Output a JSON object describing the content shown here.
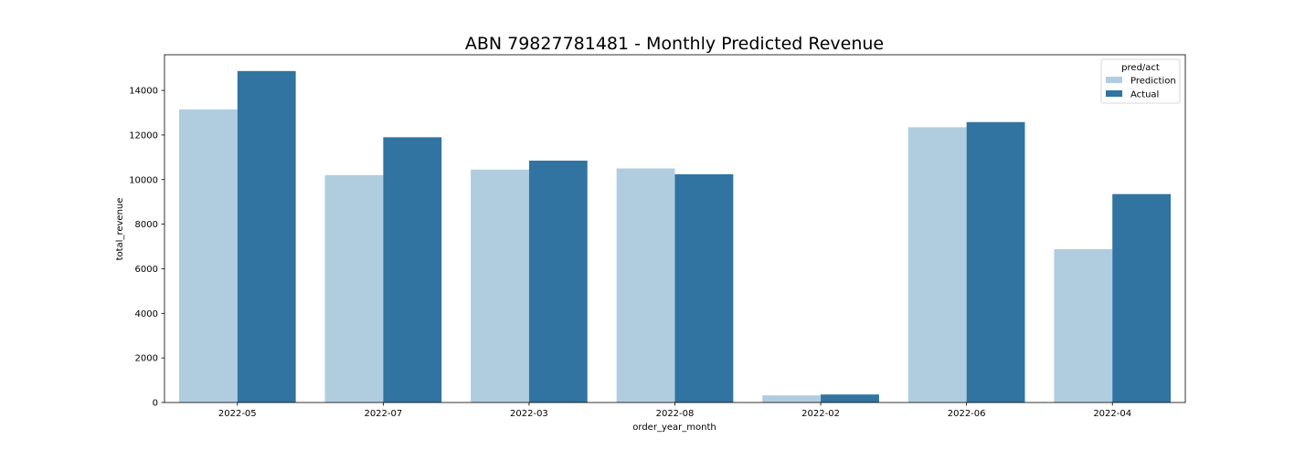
{
  "chart_data": {
    "type": "bar",
    "title": "ABN 79827781481 - Monthly Predicted Revenue",
    "xlabel": "order_year_month",
    "ylabel": "total_revenue",
    "categories": [
      "2022-05",
      "2022-07",
      "2022-03",
      "2022-08",
      "2022-02",
      "2022-06",
      "2022-04"
    ],
    "series": [
      {
        "name": "Prediction",
        "values": [
          13150,
          10200,
          10450,
          10500,
          320,
          12350,
          6880
        ],
        "color": "#b0cde0"
      },
      {
        "name": "Actual",
        "values": [
          14870,
          11900,
          10850,
          10240,
          360,
          12580,
          9350
        ],
        "color": "#3174a1"
      }
    ],
    "ylim": [
      0,
      15600
    ],
    "yticks": [
      0,
      2000,
      4000,
      6000,
      8000,
      10000,
      12000,
      14000
    ],
    "grid": false,
    "legend": {
      "title": "pred/act",
      "position": "top-right"
    }
  }
}
